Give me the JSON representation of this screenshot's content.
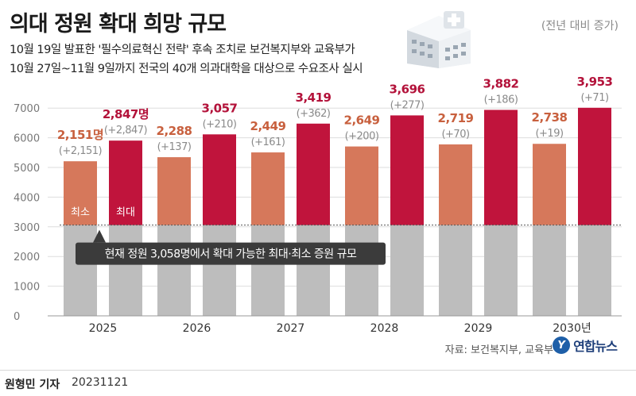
{
  "title": "의대 정원 확대 희망 규모",
  "unit_note": "(전년 대비 증가)",
  "subtitle_lines": [
    "10월 19일 발표한 '필수의료혁신 전략' 후속 조치로 보건복지부와 교육부가",
    "10월 27일~11월 9일까지 전국의 40개 의과대학을 대상으로 수요조사 실시"
  ],
  "source": "자료: 보건복지부, 교육부",
  "logo_text": "연합뉴스",
  "reporter": "원형민 기자",
  "date": "20231121",
  "colors": {
    "min": "#d6785b",
    "max": "#c0143c",
    "base": "#bdbdbd",
    "min_label": "#c8603e",
    "max_label": "#b3123a",
    "increase_label": "#8a8a8a",
    "annotation_box": "#3b3b3b"
  },
  "chart_data": {
    "type": "bar",
    "categories": [
      "2025",
      "2026",
      "2027",
      "2028",
      "2029",
      "2030년"
    ],
    "series": [
      {
        "name": "최소",
        "values": [
          5209,
          5346,
          5507,
          5707,
          5777,
          5796
        ],
        "labels": [
          "2,151명",
          "2,288",
          "2,449",
          "2,649",
          "2,719",
          "2,738"
        ],
        "increase_labels": [
          "(+2,151)",
          "(+137)",
          "(+161)",
          "(+200)",
          "(+70)",
          "(+19)"
        ]
      },
      {
        "name": "최대",
        "values": [
          5905,
          6115,
          6477,
          6754,
          6940,
          7011
        ],
        "labels": [
          "2,847명",
          "3,057",
          "3,419",
          "3,696",
          "3,882",
          "3,953"
        ],
        "increase_labels": [
          "(+2,847)",
          "(+210)",
          "(+362)",
          "(+277)",
          "(+186)",
          "(+71)"
        ]
      }
    ],
    "baseline": 3058,
    "baseline_annotation": "현재 정원 3,058명에서 확대 가능한 최대·최소 증원 규모",
    "y_ticks": [
      0,
      1000,
      2000,
      3000,
      4000,
      5000,
      6000,
      7000
    ],
    "ylim": [
      0,
      7300
    ],
    "grid": true,
    "xlabel": "",
    "ylabel": ""
  }
}
